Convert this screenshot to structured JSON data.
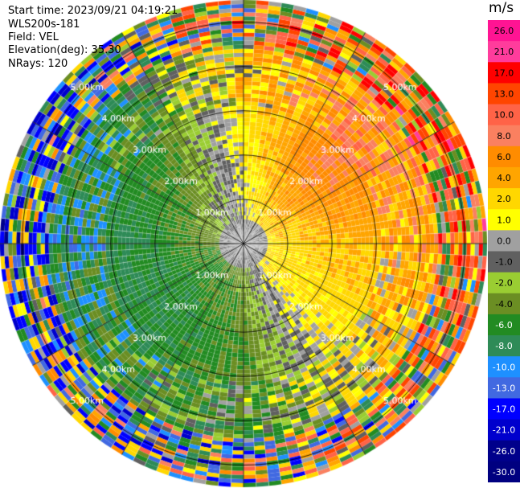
{
  "header": {
    "start_time": "Start time: 2023/09/21 04:19:21",
    "instrument": "WLS200s-181",
    "field": "Field: VEL",
    "elevation": "Elevation(deg): 35.30",
    "nrays": "NRays: 120"
  },
  "colorbar": {
    "unit": "m/s",
    "ticks": [
      "26.0",
      "21.0",
      "17.0",
      "13.0",
      "10.0",
      "8.0",
      "6.0",
      "4.0",
      "2.0",
      "1.0",
      "0.0",
      "-1.0",
      "-2.0",
      "-4.0",
      "-6.0",
      "-8.0",
      "-10.0",
      "-13.0",
      "-17.0",
      "-21.0",
      "-26.0",
      "-30.0"
    ],
    "colors": [
      "#ff1493",
      "#ff3c9c",
      "#ff0000",
      "#ff4500",
      "#ff6347",
      "#fa8060",
      "#ff8c00",
      "#ffa500",
      "#ffd700",
      "#ffff00",
      "#a0a0a0",
      "#606060",
      "#9acd32",
      "#6b8e23",
      "#228b22",
      "#2e8b57",
      "#1e90ff",
      "#4169e1",
      "#0000ff",
      "#0000cd",
      "#00008b",
      "#000080"
    ]
  },
  "chart_data": {
    "type": "heatmap",
    "subtype": "ppi-polar",
    "range_rings": [
      {
        "label": "1.00km",
        "range_km": 1.0
      },
      {
        "label": "2.00km",
        "range_km": 2.0
      },
      {
        "label": "3.00km",
        "range_km": 3.0
      },
      {
        "label": "4.00km",
        "range_km": 4.0
      },
      {
        "label": "5.00km",
        "range_km": 5.0
      }
    ],
    "max_range_km": 5.5,
    "nrays": 120,
    "spoke_step_deg": 30,
    "value_range": [
      -30,
      26
    ],
    "pattern": {
      "description_free": true,
      "sectors": [
        {
          "az_deg": 0,
          "near": 0.0,
          "mid": 2.0,
          "far": 4.0
        },
        {
          "az_deg": 45,
          "near": 2.0,
          "mid": 8.0,
          "far": 8.0
        },
        {
          "az_deg": 90,
          "near": 2.0,
          "mid": 4.0,
          "far": 6.0
        },
        {
          "az_deg": 135,
          "near": 2.0,
          "mid": 2.0,
          "far": 1.0
        },
        {
          "az_deg": 180,
          "near": -2.0,
          "mid": -4.0,
          "far": -2.0
        },
        {
          "az_deg": 225,
          "near": -4.0,
          "mid": -6.0,
          "far": -4.0
        },
        {
          "az_deg": 270,
          "near": -2.0,
          "mid": -6.0,
          "far": -8.0
        },
        {
          "az_deg": 315,
          "near": 0.0,
          "mid": -4.0,
          "far": -6.0
        }
      ]
    }
  }
}
